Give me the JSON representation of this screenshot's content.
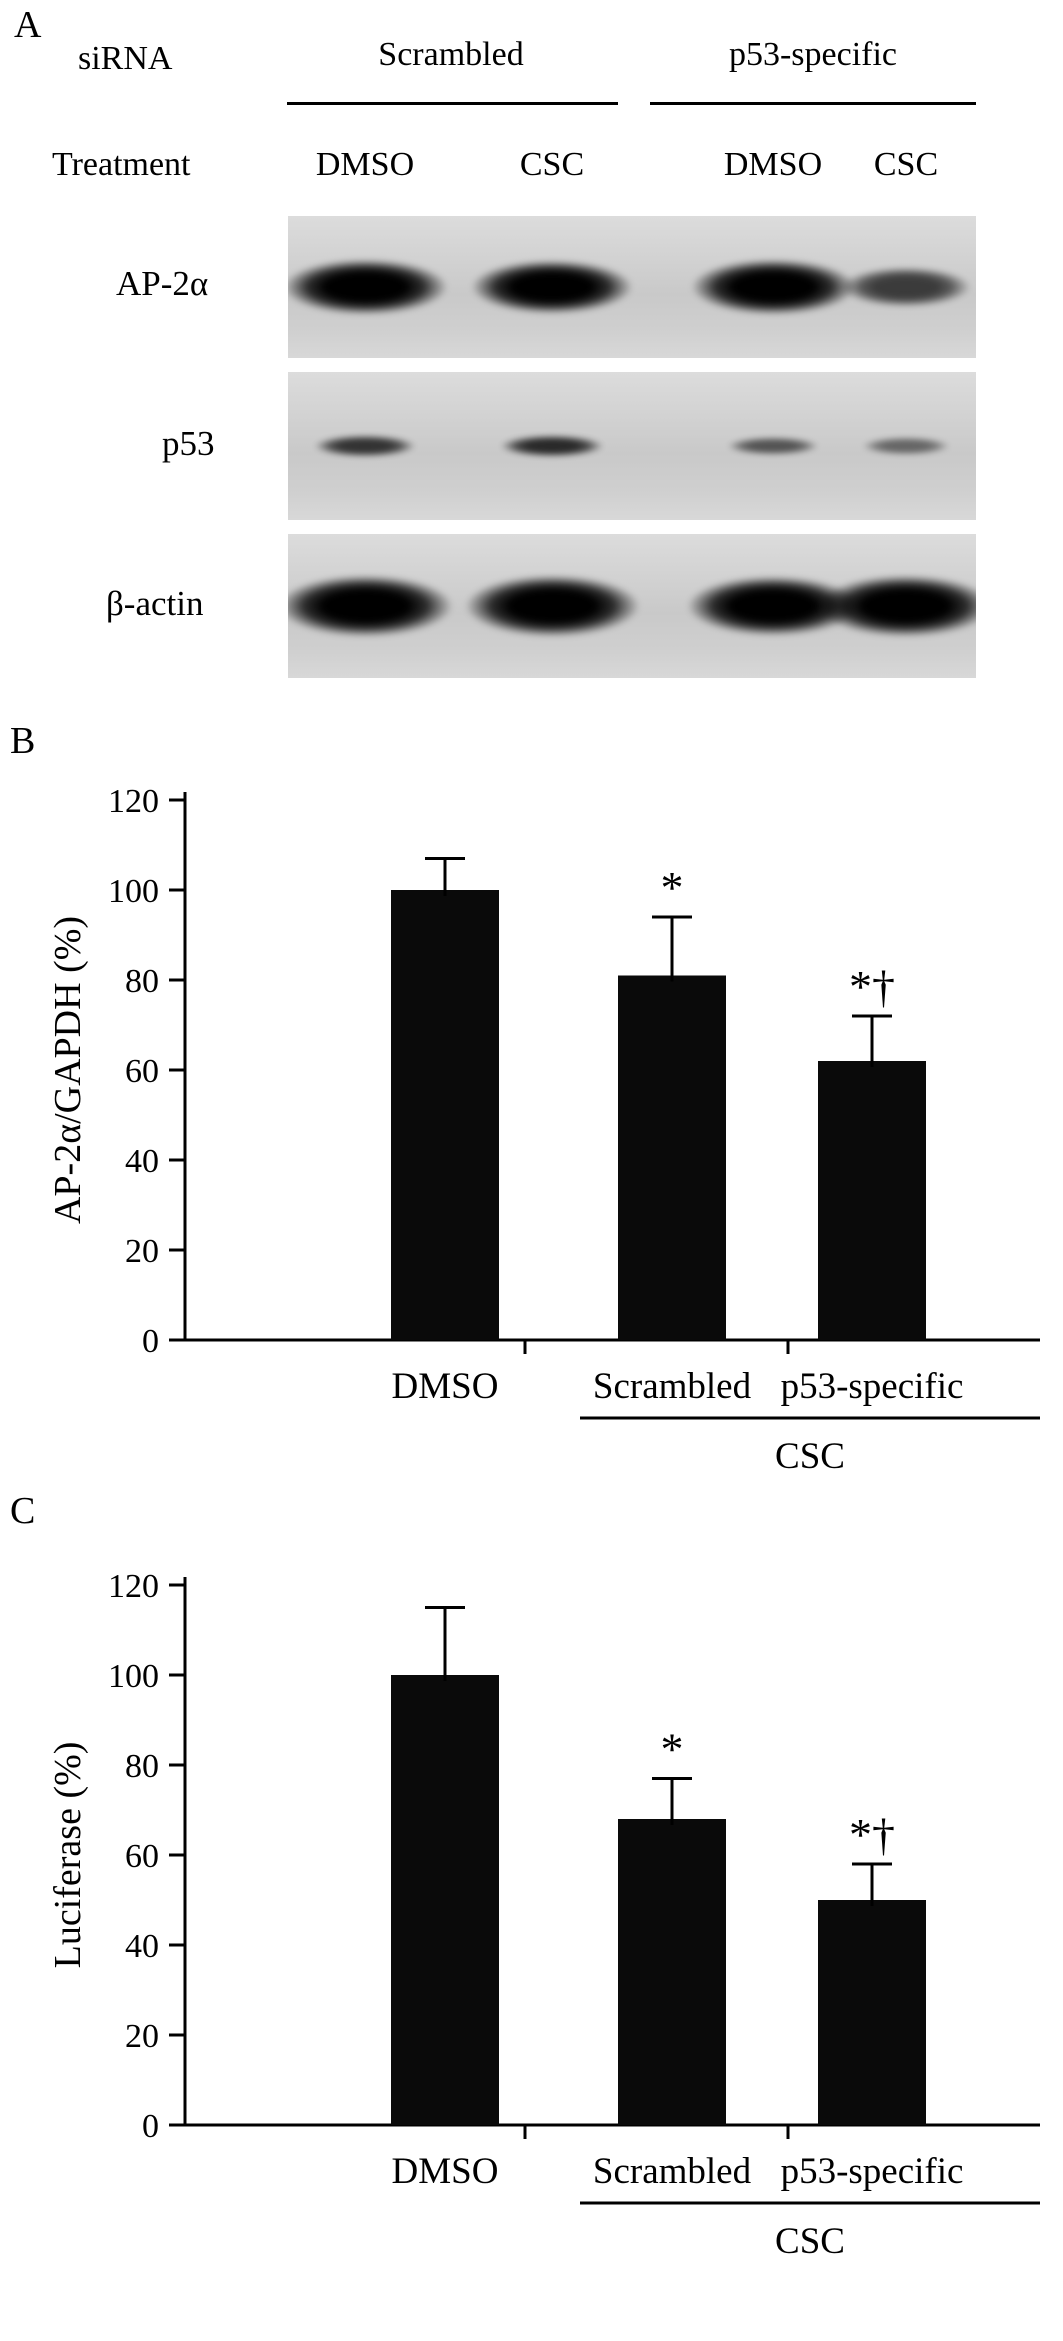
{
  "panel_a": {
    "label": "A",
    "sirna_row_label": "siRNA",
    "treatment_row_label": "Treatment",
    "sirna_groups": [
      "Scrambled",
      "p53-specific"
    ],
    "treatments": [
      "DMSO",
      "CSC",
      "DMSO",
      "CSC"
    ],
    "blots": [
      {
        "label": "AP-2α",
        "band_intensities": [
          1.0,
          0.95,
          1.0,
          0.45
        ]
      },
      {
        "label": "p53",
        "band_intensities": [
          0.5,
          0.55,
          0.32,
          0.22
        ]
      },
      {
        "label": "β-actin",
        "band_intensities": [
          1.0,
          1.0,
          0.95,
          1.0
        ]
      }
    ]
  },
  "panel_b": {
    "label": "B"
  },
  "panel_c": {
    "label": "C"
  },
  "chart_data": [
    {
      "panel": "B",
      "type": "bar",
      "ylabel": "AP-2α/GAPDH (%)",
      "ylim": [
        0,
        120
      ],
      "yticks": [
        0,
        20,
        40,
        60,
        80,
        100,
        120
      ],
      "categories": [
        "DMSO",
        "Scrambled",
        "p53-specific"
      ],
      "values": [
        100,
        81,
        62
      ],
      "errors": [
        7,
        13,
        10
      ],
      "annotations": [
        "",
        "*",
        "*†"
      ],
      "group_label": "CSC",
      "grouped_categories": [
        "Scrambled",
        "p53-specific"
      ],
      "bar_color": "#0a0a0a",
      "grid": false,
      "legend": "none"
    },
    {
      "panel": "C",
      "type": "bar",
      "ylabel": "Luciferase (%)",
      "ylim": [
        0,
        120
      ],
      "yticks": [
        0,
        20,
        40,
        60,
        80,
        100,
        120
      ],
      "categories": [
        "DMSO",
        "Scrambled",
        "p53-specific"
      ],
      "values": [
        100,
        68,
        50
      ],
      "errors": [
        15,
        9,
        8
      ],
      "annotations": [
        "",
        "*",
        "*†"
      ],
      "group_label": "CSC",
      "grouped_categories": [
        "Scrambled",
        "p53-specific"
      ],
      "bar_color": "#0a0a0a",
      "grid": false,
      "legend": "none"
    }
  ]
}
